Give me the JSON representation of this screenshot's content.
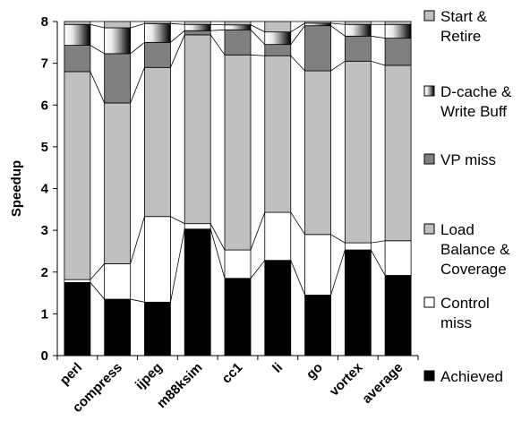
{
  "chart_data": {
    "type": "bar",
    "stacked": true,
    "categories": [
      "perl",
      "compress",
      "ijpeg",
      "m88ksim",
      "cc1",
      "li",
      "go",
      "vortex",
      "average"
    ],
    "series": [
      {
        "name": "Achieved",
        "color": "#000000",
        "values": [
          1.75,
          1.35,
          1.28,
          3.03,
          1.85,
          2.28,
          1.45,
          2.53,
          1.92
        ]
      },
      {
        "name": "Control miss",
        "color": "#ffffff",
        "values": [
          0.07,
          0.85,
          2.05,
          0.13,
          0.68,
          1.15,
          1.45,
          0.17,
          0.83
        ]
      },
      {
        "name": "Load Balance & Coverage",
        "color": "#c0c0c0",
        "values": [
          4.98,
          3.85,
          3.57,
          4.52,
          4.67,
          3.75,
          3.92,
          4.35,
          4.2
        ]
      },
      {
        "name": "VP miss",
        "color": "#808080",
        "values": [
          0.63,
          1.18,
          0.6,
          0.1,
          0.6,
          0.27,
          1.08,
          0.6,
          0.65
        ]
      },
      {
        "name": "D-cache & Write Buff",
        "color": "gradient-gray",
        "values": [
          0.5,
          0.62,
          0.45,
          0.15,
          0.12,
          0.3,
          0.06,
          0.28,
          0.33
        ]
      },
      {
        "name": "Start & Retire",
        "color": "#c0c0c0",
        "values": [
          0.07,
          0.15,
          0.05,
          0.07,
          0.08,
          0.25,
          0.04,
          0.07,
          0.07
        ]
      }
    ],
    "ylabel": "Speedup",
    "ylim": [
      0,
      8
    ],
    "yticks": [
      0,
      1,
      2,
      3,
      4,
      5,
      6,
      7,
      8
    ],
    "legend_position": "right",
    "legend_labels": [
      {
        "series": "Start & Retire",
        "lines": [
          "Start &",
          "Retire"
        ],
        "swatch": "light-gray"
      },
      {
        "series": "D-cache & Write Buff",
        "lines": [
          "D-cache &",
          "Write Buff"
        ],
        "swatch": "gradient"
      },
      {
        "series": "VP miss",
        "lines": [
          "VP miss"
        ],
        "swatch": "dark-gray"
      },
      {
        "series": "Load Balance & Coverage",
        "lines": [
          "Load",
          "Balance &",
          "Coverage"
        ],
        "swatch": "light-gray"
      },
      {
        "series": "Control miss",
        "lines": [
          "Control",
          "miss"
        ],
        "swatch": "white"
      },
      {
        "series": "Achieved",
        "lines": [
          "Achieved"
        ],
        "swatch": "black"
      }
    ],
    "grid": false
  }
}
